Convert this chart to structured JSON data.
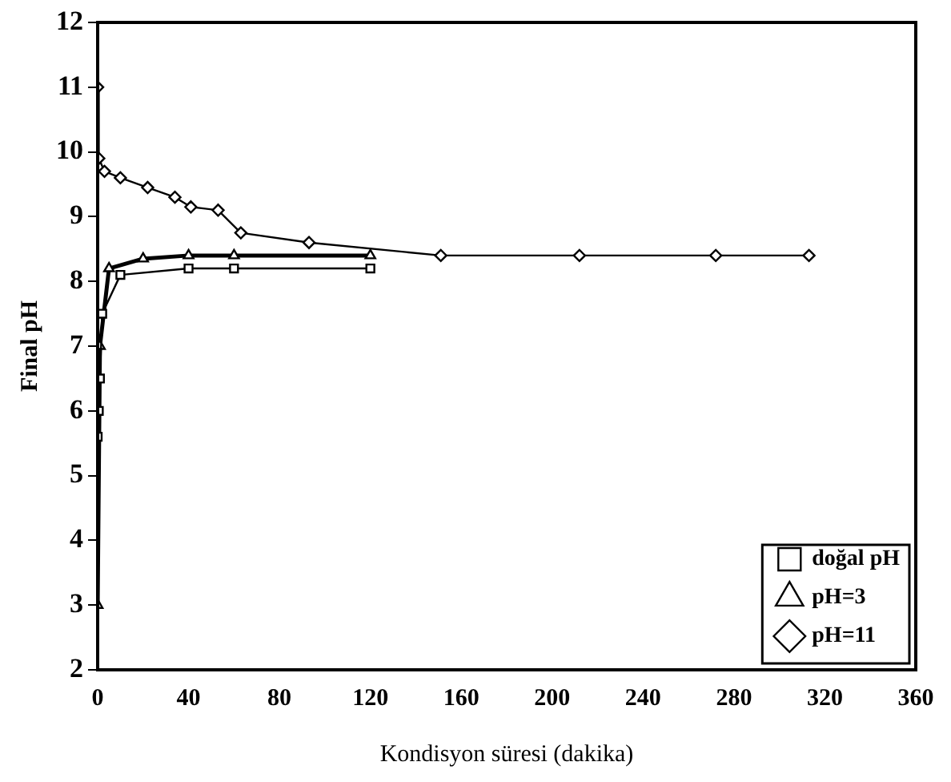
{
  "chart_data": {
    "type": "line",
    "xlabel": "Kondisyon süresi (dakika)",
    "ylabel": "Final pH",
    "xlim": [
      0,
      360
    ],
    "xticks": [
      0,
      40,
      80,
      120,
      160,
      200,
      240,
      280,
      320,
      360
    ],
    "ylim": [
      2,
      12
    ],
    "yticks": [
      2,
      3,
      4,
      5,
      6,
      7,
      8,
      9,
      10,
      11,
      12
    ],
    "grid": false,
    "legend": "bottom right",
    "series": [
      {
        "name": "pH=11",
        "color": "#000000",
        "marker": "diamond",
        "x": [
          0,
          0.5,
          3,
          10,
          22,
          34,
          41,
          53,
          63,
          93,
          151,
          212,
          272,
          313
        ],
        "values": [
          11,
          9.9,
          9.7,
          9.6,
          9.45,
          9.3,
          9.15,
          9.1,
          8.75,
          8.6,
          8.4,
          8.4,
          8.4,
          8.4
        ]
      },
      {
        "name": "pH=3",
        "color": "#000000",
        "marker": "triangle",
        "x": [
          0,
          1,
          5,
          20,
          40,
          60,
          120
        ],
        "values": [
          3,
          7,
          8.2,
          8.35,
          8.4,
          8.4,
          8.4
        ]
      },
      {
        "name": "doğal pH",
        "color": "#000000",
        "marker": "square",
        "x": [
          0,
          0.5,
          1,
          2,
          10,
          40,
          60,
          120
        ],
        "values": [
          5.6,
          6,
          6.5,
          7.5,
          8.1,
          8.2,
          8.2,
          8.2
        ]
      }
    ]
  }
}
